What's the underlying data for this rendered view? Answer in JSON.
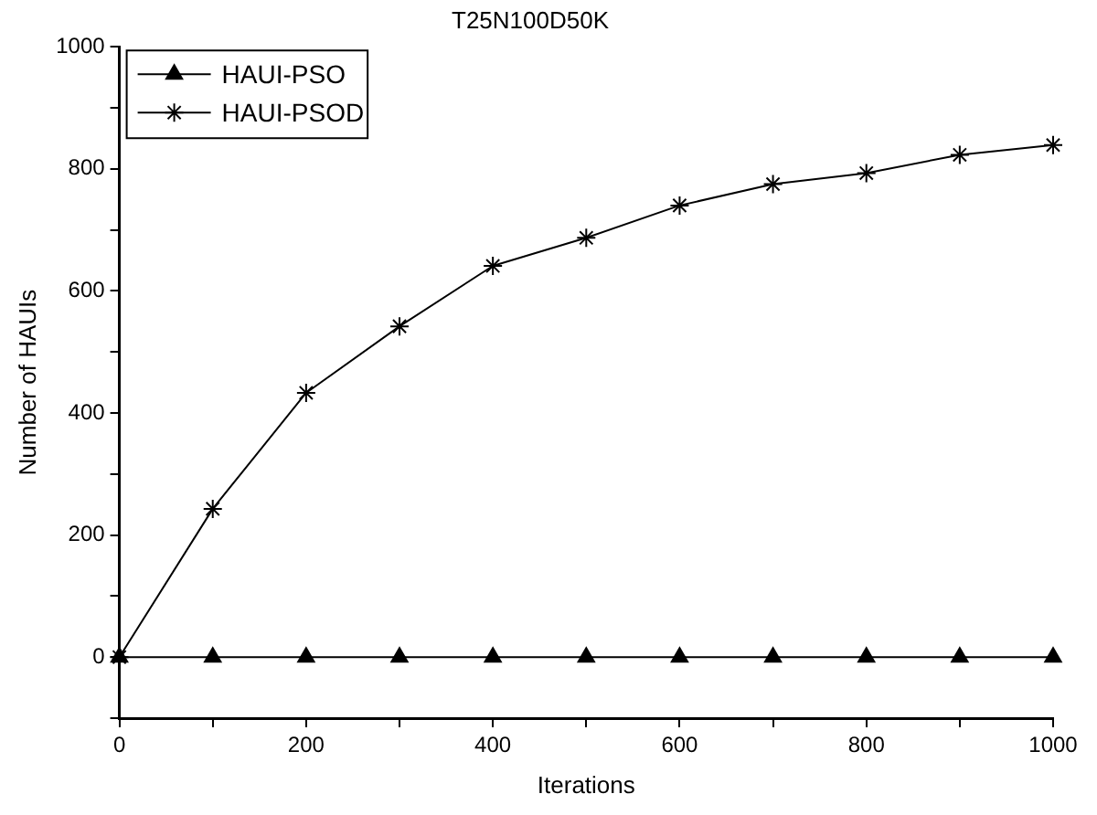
{
  "chart_data": {
    "type": "line",
    "title": "T25N100D50K",
    "xlabel": "Iterations",
    "ylabel": "Number of HAUIs",
    "x": [
      0,
      100,
      200,
      300,
      400,
      500,
      600,
      700,
      800,
      900,
      1000
    ],
    "series": [
      {
        "name": "HAUI-PSO",
        "color": "#000000",
        "marker": "triangle",
        "values": [
          0,
          0,
          0,
          0,
          0,
          0,
          0,
          0,
          0,
          0,
          0
        ]
      },
      {
        "name": "HAUI-PSOD",
        "color": "#000000",
        "marker": "cross",
        "values": [
          0,
          243,
          433,
          542,
          641,
          687,
          740,
          775,
          793,
          823,
          839
        ]
      }
    ],
    "xlim": [
      0,
      1000
    ],
    "xticks": [
      0,
      {
        "value": 100,
        "label": null
      },
      200,
      {
        "value": 300,
        "label": null
      },
      400,
      {
        "value": 500,
        "label": null
      },
      600,
      {
        "value": 700,
        "label": null
      },
      800,
      {
        "value": 900,
        "label": null
      },
      1000
    ],
    "ylim": [
      -100,
      1000
    ],
    "yticks": [
      {
        "value": -100,
        "label": null
      },
      0,
      {
        "value": 100,
        "label": null
      },
      200,
      {
        "value": 300,
        "label": null
      },
      400,
      {
        "value": 500,
        "label": null
      },
      600,
      {
        "value": 700,
        "label": null
      },
      800,
      {
        "value": 900,
        "label": null
      },
      1000
    ],
    "grid": false,
    "legend": "top left",
    "line_style": "solid"
  }
}
